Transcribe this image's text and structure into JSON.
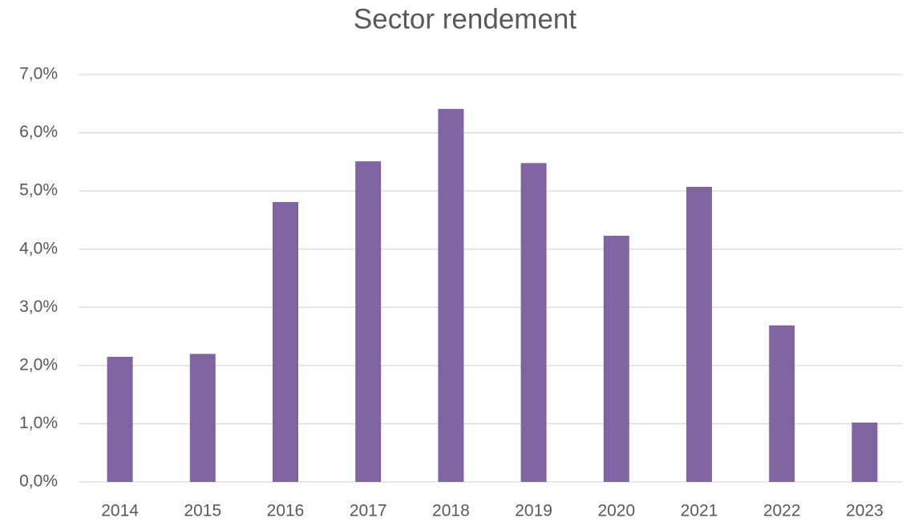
{
  "chart_data": {
    "type": "bar",
    "title": "Sector rendement",
    "categories": [
      "2014",
      "2015",
      "2016",
      "2017",
      "2018",
      "2019",
      "2020",
      "2021",
      "2022",
      "2023"
    ],
    "values": [
      2.15,
      2.2,
      4.81,
      5.51,
      6.41,
      5.48,
      4.23,
      5.07,
      2.69,
      1.02
    ],
    "color": "#8064a2",
    "ylim": [
      0,
      7
    ],
    "yticks": [
      {
        "value": 0,
        "label": "0,0%"
      },
      {
        "value": 1,
        "label": "1,0%"
      },
      {
        "value": 2,
        "label": "2,0%"
      },
      {
        "value": 3,
        "label": "3,0%"
      },
      {
        "value": 4,
        "label": "4,0%"
      },
      {
        "value": 5,
        "label": "5,0%"
      },
      {
        "value": 6,
        "label": "6,0%"
      },
      {
        "value": 7,
        "label": "7,0%"
      }
    ],
    "grid": true
  }
}
